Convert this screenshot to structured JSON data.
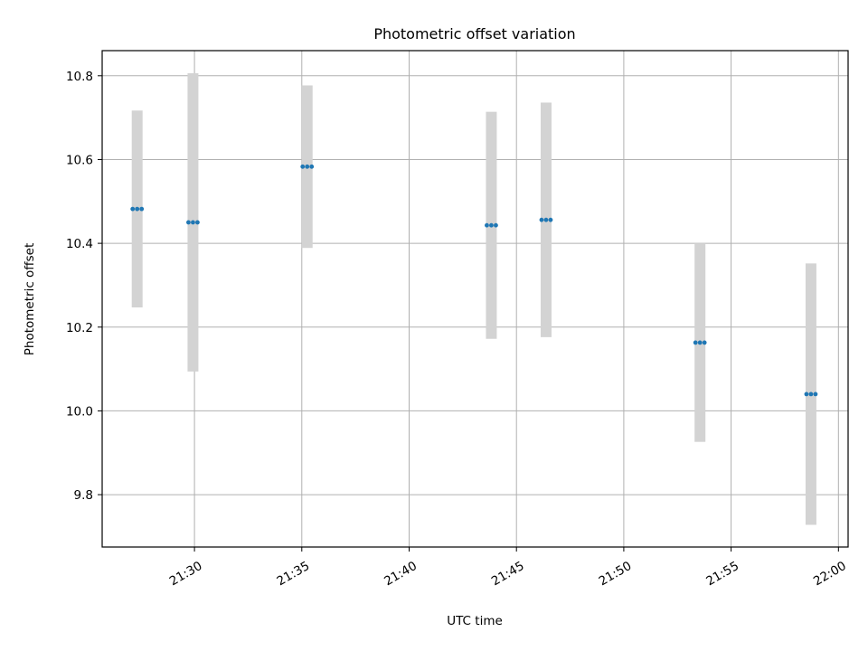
{
  "chart_data": {
    "type": "scatter",
    "title": "Photometric offset variation",
    "xlabel": "UTC time",
    "ylabel": "Photometric offset",
    "x_tick_labels": [
      "21:30",
      "21:35",
      "21:40",
      "21:45",
      "21:50",
      "21:55",
      "22:00"
    ],
    "x_tick_minutes": [
      30,
      35,
      40,
      45,
      50,
      55,
      60
    ],
    "xlim_minutes": [
      25.7,
      60.45
    ],
    "y_ticks": [
      9.8,
      10.0,
      10.2,
      10.4,
      10.6,
      10.8
    ],
    "y_tick_labels": [
      "9.8",
      "10.0",
      "10.2",
      "10.4",
      "10.6",
      "10.8"
    ],
    "ylim": [
      9.675,
      10.86
    ],
    "grid": true,
    "point_color": "#1f77b4",
    "errorbar_color": "#d3d3d3",
    "points": [
      {
        "time": "21:27:20",
        "minute": 27.33,
        "offset": 10.482,
        "yerr_low": 10.247,
        "yerr_high": 10.717
      },
      {
        "time": "21:29:56",
        "minute": 29.93,
        "offset": 10.45,
        "yerr_low": 10.094,
        "yerr_high": 10.806
      },
      {
        "time": "21:35:15",
        "minute": 35.25,
        "offset": 10.583,
        "yerr_low": 10.389,
        "yerr_high": 10.777
      },
      {
        "time": "21:43:50",
        "minute": 43.83,
        "offset": 10.443,
        "yerr_low": 10.172,
        "yerr_high": 10.714
      },
      {
        "time": "21:46:23",
        "minute": 46.38,
        "offset": 10.456,
        "yerr_low": 10.176,
        "yerr_high": 10.736
      },
      {
        "time": "21:53:33",
        "minute": 53.55,
        "offset": 10.163,
        "yerr_low": 9.926,
        "yerr_high": 10.4
      },
      {
        "time": "21:58:43",
        "minute": 58.72,
        "offset": 10.04,
        "yerr_low": 9.728,
        "yerr_high": 10.352
      }
    ]
  }
}
